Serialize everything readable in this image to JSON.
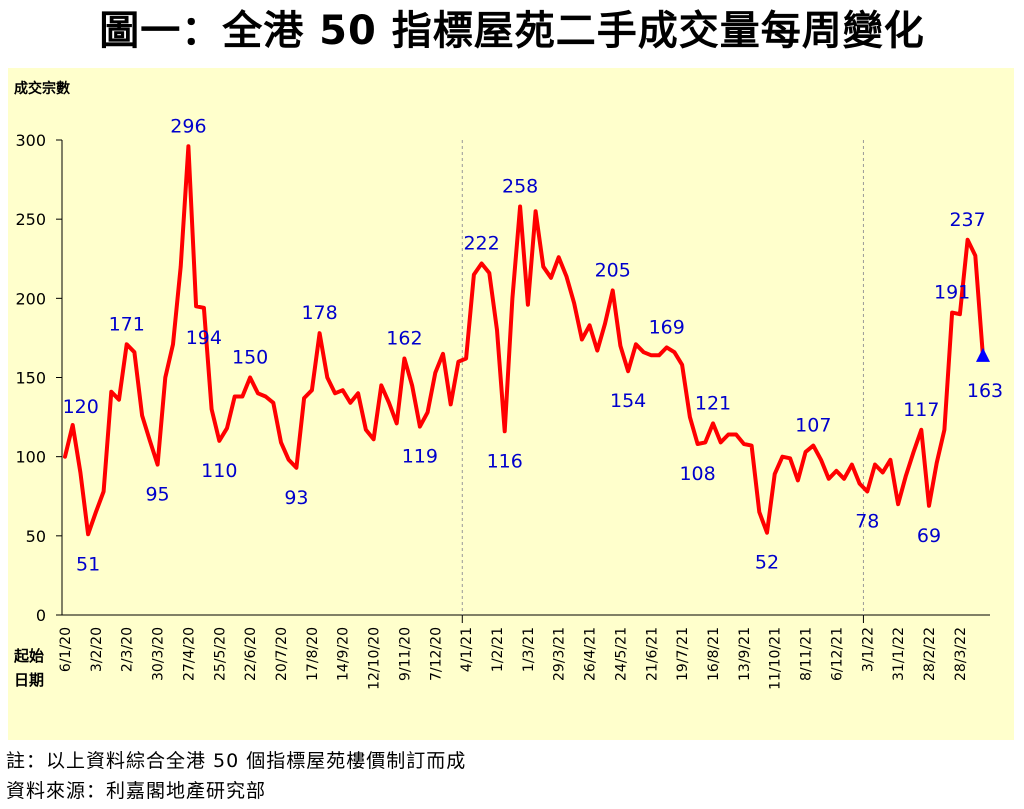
{
  "title": "圖一：全港 50 指標屋苑二手成交量每周變化",
  "notes": [
    "註：以上資料綜合全港 50 個指標屋苑樓價制訂而成",
    "資料來源：利嘉閣地產研究部"
  ],
  "colors": {
    "line": "#ff0000",
    "label": "#0000cc",
    "background": "#ffffcc",
    "marker": "#0000ff"
  },
  "chart_data": {
    "type": "line",
    "title": "圖一：全港 50 指標屋苑二手成交量每周變化",
    "ylabel": "成交宗數",
    "xlabel": "起始日期",
    "ylim": [
      0,
      300
    ],
    "yticks": [
      0,
      50,
      100,
      150,
      200,
      250,
      300
    ],
    "grid": false,
    "year_dividers_after_index": [
      51,
      103
    ],
    "x_tick_labels": [
      {
        "index": 0,
        "label": "6/1/20"
      },
      {
        "index": 4,
        "label": "3/2/20"
      },
      {
        "index": 8,
        "label": "2/3/20"
      },
      {
        "index": 12,
        "label": "30/3/20"
      },
      {
        "index": 16,
        "label": "27/4/20"
      },
      {
        "index": 20,
        "label": "25/5/20"
      },
      {
        "index": 24,
        "label": "22/6/20"
      },
      {
        "index": 28,
        "label": "20/7/20"
      },
      {
        "index": 32,
        "label": "17/8/20"
      },
      {
        "index": 36,
        "label": "14/9/20"
      },
      {
        "index": 40,
        "label": "12/10/20"
      },
      {
        "index": 44,
        "label": "9/11/20"
      },
      {
        "index": 48,
        "label": "7/12/20"
      },
      {
        "index": 52,
        "label": "4/1/21"
      },
      {
        "index": 56,
        "label": "1/2/21"
      },
      {
        "index": 60,
        "label": "1/3/21"
      },
      {
        "index": 64,
        "label": "29/3/21"
      },
      {
        "index": 68,
        "label": "26/4/21"
      },
      {
        "index": 72,
        "label": "24/5/21"
      },
      {
        "index": 76,
        "label": "21/6/21"
      },
      {
        "index": 80,
        "label": "19/7/21"
      },
      {
        "index": 84,
        "label": "16/8/21"
      },
      {
        "index": 88,
        "label": "13/9/21"
      },
      {
        "index": 92,
        "label": "11/10/21"
      },
      {
        "index": 96,
        "label": "8/11/21"
      },
      {
        "index": 100,
        "label": "6/12/21"
      },
      {
        "index": 104,
        "label": "3/1/22"
      },
      {
        "index": 108,
        "label": "31/1/22"
      },
      {
        "index": 112,
        "label": "28/2/22"
      },
      {
        "index": 116,
        "label": "28/3/22"
      }
    ],
    "series": [
      {
        "name": "成交宗數",
        "values": [
          100,
          120,
          90,
          51,
          65,
          78,
          141,
          136,
          171,
          166,
          126,
          110,
          95,
          150,
          171,
          220,
          296,
          195,
          194,
          130,
          110,
          118,
          138,
          138,
          150,
          140,
          138,
          134,
          109,
          98,
          93,
          137,
          142,
          178,
          150,
          140,
          142,
          134,
          140,
          117,
          111,
          145,
          134,
          121,
          162,
          145,
          119,
          128,
          153,
          165,
          133,
          160,
          162,
          215,
          222,
          216,
          180,
          116,
          200,
          258,
          196,
          255,
          220,
          213,
          226,
          214,
          197,
          174,
          183,
          167,
          184,
          205,
          170,
          154,
          171,
          166,
          164,
          164,
          169,
          166,
          158,
          125,
          108,
          109,
          121,
          109,
          114,
          114,
          108,
          107,
          65,
          52,
          89,
          100,
          99,
          85,
          103,
          107,
          98,
          86,
          91,
          86,
          95,
          83,
          78,
          95,
          90,
          98,
          70,
          88,
          103,
          117,
          69,
          96,
          117,
          191,
          190,
          237,
          227,
          163
        ]
      }
    ],
    "annotations": [
      {
        "index": 1,
        "value": 120,
        "text": "120"
      },
      {
        "index": 3,
        "value": 51,
        "text": "51"
      },
      {
        "index": 8,
        "value": 171,
        "text": "171"
      },
      {
        "index": 12,
        "value": 95,
        "text": "95"
      },
      {
        "index": 16,
        "value": 296,
        "text": "296"
      },
      {
        "index": 18,
        "value": 194,
        "text": "194"
      },
      {
        "index": 20,
        "value": 110,
        "text": "110"
      },
      {
        "index": 24,
        "value": 150,
        "text": "150"
      },
      {
        "index": 30,
        "value": 93,
        "text": "93"
      },
      {
        "index": 33,
        "value": 178,
        "text": "178"
      },
      {
        "index": 44,
        "value": 162,
        "text": "162"
      },
      {
        "index": 46,
        "value": 119,
        "text": "119"
      },
      {
        "index": 54,
        "value": 222,
        "text": "222"
      },
      {
        "index": 57,
        "value": 116,
        "text": "116"
      },
      {
        "index": 59,
        "value": 258,
        "text": "258"
      },
      {
        "index": 71,
        "value": 205,
        "text": "205"
      },
      {
        "index": 73,
        "value": 154,
        "text": "154"
      },
      {
        "index": 78,
        "value": 169,
        "text": "169"
      },
      {
        "index": 82,
        "value": 108,
        "text": "108"
      },
      {
        "index": 84,
        "value": 121,
        "text": "121"
      },
      {
        "index": 91,
        "value": 52,
        "text": "52"
      },
      {
        "index": 97,
        "value": 107,
        "text": "107"
      },
      {
        "index": 104,
        "value": 78,
        "text": "78"
      },
      {
        "index": 111,
        "value": 117,
        "text": "117"
      },
      {
        "index": 112,
        "value": 69,
        "text": "69"
      },
      {
        "index": 115,
        "value": 191,
        "text": "191"
      },
      {
        "index": 117,
        "value": 237,
        "text": "237"
      },
      {
        "index": 119,
        "value": 163,
        "text": "163"
      }
    ]
  }
}
